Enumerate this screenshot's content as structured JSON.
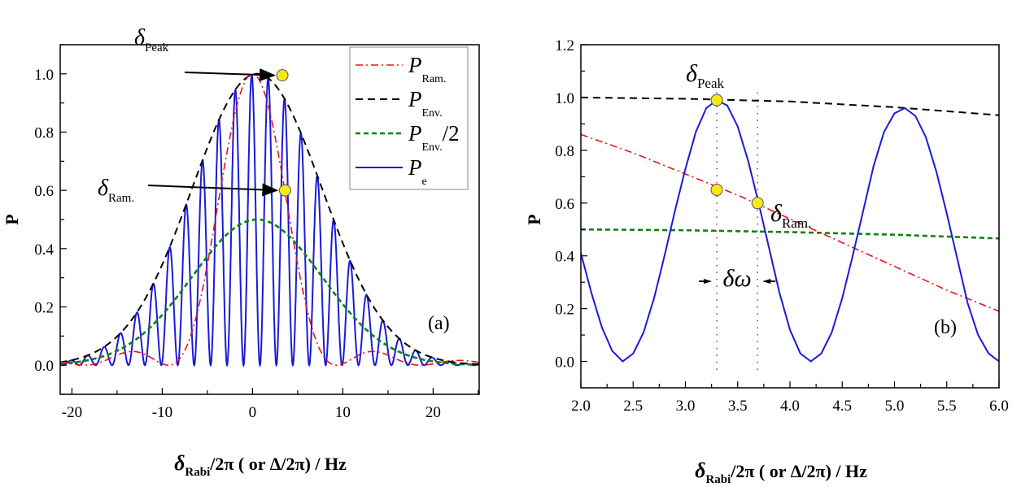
{
  "chart_data": [
    {
      "id": "a",
      "type": "line",
      "panel_label": "(a)",
      "xlabel": {
        "main": "δ",
        "sub": "Rabi",
        "rest": "/2π ( or Δ/2π) / Hz"
      },
      "ylabel": "P",
      "xlim": [
        -21.3,
        25.1
      ],
      "ylim": [
        -0.1,
        1.1
      ],
      "xticks": [
        -20,
        -10,
        0,
        10,
        20
      ],
      "xtick_labels": [
        "-20",
        "-10",
        "0",
        "10",
        "20"
      ],
      "yticks": [
        0.0,
        0.2,
        0.4,
        0.6,
        0.8,
        1.0
      ],
      "ytick_labels": [
        "0.0",
        "0.2",
        "0.4",
        "0.6",
        "0.8",
        "1.0"
      ],
      "legend": {
        "placement": "top-right",
        "entries": [
          {
            "main": "P",
            "sub": "Ram.",
            "suffix": "",
            "color": "#e8141b",
            "style": "dash-dot"
          },
          {
            "main": "P",
            "sub": "Env.",
            "suffix": "",
            "color": "#000000",
            "style": "dashed"
          },
          {
            "main": "P",
            "sub": "Env.",
            "suffix": "/2",
            "color": "#118211",
            "style": "short-dash"
          },
          {
            "main": "P",
            "sub": "e",
            "suffix": "",
            "color": "#1a1adc",
            "style": "solid"
          }
        ]
      },
      "series": [
        {
          "name": "P_Ram.",
          "model": "sinc2",
          "width": 9.3,
          "center": 0,
          "amplitude": 1.0
        },
        {
          "name": "P_Env.",
          "model": "gaussian",
          "center": 0.5,
          "sigma": 7.2,
          "amplitude": 1.0
        },
        {
          "name": "P_Env./2",
          "model": "gaussian",
          "center": 0.5,
          "sigma": 7.2,
          "amplitude": 0.5
        },
        {
          "name": "P_e",
          "model": "cos-modulated-envelope",
          "period": 1.82,
          "phase_x": 3.55
        }
      ],
      "annotations": [
        {
          "label_main": "δ",
          "label_sub": "Peak",
          "x": 3.3,
          "y": 0.995
        },
        {
          "label_main": "δ",
          "label_sub": "Ram.",
          "x": 3.6,
          "y": 0.6
        }
      ]
    },
    {
      "id": "b",
      "type": "line",
      "panel_label": "(b)",
      "xlabel": {
        "main": "δ",
        "sub": "Rabi",
        "rest": "/2π ( or Δ/2π) / Hz"
      },
      "ylabel": "P",
      "xlim": [
        2.0,
        6.0
      ],
      "ylim": [
        -0.1,
        1.2
      ],
      "xticks": [
        2.0,
        2.5,
        3.0,
        3.5,
        4.0,
        4.5,
        5.0,
        5.5,
        6.0
      ],
      "xtick_labels": [
        "2.0",
        "2.5",
        "3.0",
        "3.5",
        "4.0",
        "4.5",
        "5.0",
        "5.5",
        "6.0"
      ],
      "yticks": [
        0.0,
        0.2,
        0.4,
        0.6,
        0.8,
        1.0,
        1.2
      ],
      "ytick_labels": [
        "0.0",
        "0.2",
        "0.4",
        "0.6",
        "0.8",
        "1.0",
        "1.2"
      ],
      "series": [
        {
          "name": "P_Env.",
          "x": [
            2.0,
            3.0,
            4.0,
            5.0,
            6.0
          ],
          "values": [
            1.0,
            0.995,
            0.985,
            0.963,
            0.933
          ]
        },
        {
          "name": "P_Env./2",
          "x": [
            2.0,
            3.0,
            4.0,
            5.0,
            6.0
          ],
          "values": [
            0.5,
            0.497,
            0.49,
            0.48,
            0.466
          ]
        },
        {
          "name": "P_Ram.",
          "x": [
            2.0,
            2.5,
            3.0,
            3.5,
            4.0,
            4.5,
            5.0,
            5.5,
            6.0
          ],
          "values": [
            0.86,
            0.79,
            0.71,
            0.63,
            0.54,
            0.45,
            0.36,
            0.27,
            0.19
          ]
        },
        {
          "name": "P_e",
          "x": [
            2.0,
            2.1,
            2.2,
            2.3,
            2.4,
            2.5,
            2.6,
            2.7,
            2.8,
            2.9,
            3.0,
            3.1,
            3.2,
            3.3,
            3.4,
            3.5,
            3.6,
            3.7,
            3.8,
            3.9,
            4.0,
            4.1,
            4.2,
            4.3,
            4.4,
            4.5,
            4.6,
            4.7,
            4.8,
            4.9,
            5.0,
            5.1,
            5.2,
            5.3,
            5.4,
            5.5,
            5.6,
            5.7,
            5.8,
            5.9,
            6.0
          ],
          "values": [
            0.41,
            0.26,
            0.13,
            0.04,
            0.0,
            0.03,
            0.11,
            0.24,
            0.4,
            0.57,
            0.73,
            0.87,
            0.96,
            0.99,
            0.97,
            0.89,
            0.76,
            0.6,
            0.43,
            0.26,
            0.12,
            0.03,
            0.0,
            0.03,
            0.11,
            0.24,
            0.4,
            0.57,
            0.74,
            0.87,
            0.94,
            0.96,
            0.93,
            0.85,
            0.72,
            0.56,
            0.39,
            0.22,
            0.1,
            0.03,
            0.0
          ]
        }
      ],
      "markers": [
        {
          "label_main": "δ",
          "label_sub": "Peak",
          "x": 3.3,
          "y": 0.99
        },
        {
          "label_main": "",
          "label_sub": "",
          "x": 3.3,
          "y": 0.65
        },
        {
          "label_main": "δ",
          "label_sub": "Ram.",
          "x": 3.69,
          "y": 0.6
        }
      ],
      "vlines": [
        3.3,
        3.69
      ],
      "delta_omega_label": "δω"
    }
  ]
}
